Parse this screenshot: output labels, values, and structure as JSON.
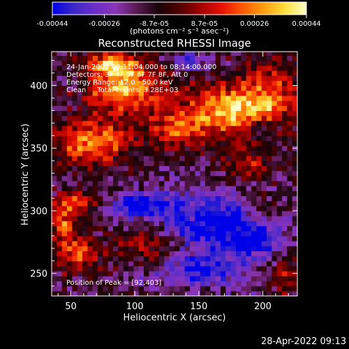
{
  "chart_data": {
    "type": "heatmap",
    "title": "Reconstructed RHESSI Image",
    "xlabel": "Heliocentric X (arcsec)",
    "ylabel": "Heliocentric Y (arcsec)",
    "xlim": [
      35,
      227
    ],
    "ylim": [
      232,
      427
    ],
    "x_ticks": [
      50,
      100,
      150,
      200
    ],
    "y_ticks": [
      250,
      300,
      350,
      400
    ],
    "colorbar": {
      "range": [
        -0.00044,
        0.00044
      ],
      "tick_values": [
        -0.00044,
        -0.00026,
        -8.7e-05,
        8.7e-05,
        0.00026,
        0.00044
      ],
      "tick_labels": [
        "-0.00044",
        "-0.00026",
        "-8.7e-05",
        "8.7e-05",
        "0.00026",
        "0.00044"
      ],
      "unit_label": "(photons cm⁻² s⁻¹ asec⁻²)"
    },
    "colormap": [
      "#0000e8",
      "#3c28c8",
      "#6a2ec8",
      "#8a35b8",
      "#5a1a50",
      "#180408",
      "#500000",
      "#a30000",
      "#e61000",
      "#ff5a00",
      "#ffa010",
      "#ffdf40",
      "#ffffc8"
    ],
    "annotations": [
      "24-Jan-2003 08:11:04.000 to 08:14:00.000",
      "Detectors: 3F 4F 5F 6F 7F 8F, Att 0",
      "Energy Range: 12.0 - 50.0 keV",
      "Clean     Total counts: 3.28E+03",
      "Position of Peak = [92,403]"
    ],
    "peak": [
      92,
      403
    ],
    "grid": false,
    "legend": "colorbar-top",
    "timestamp": "28-Apr-2022 09:13",
    "hot_regions": [
      {
        "x": 92,
        "y": 400,
        "rx": 28,
        "ry": 22,
        "amp": 1.25
      },
      {
        "x": 65,
        "y": 355,
        "rx": 32,
        "ry": 18,
        "amp": 1.0
      },
      {
        "x": 170,
        "y": 380,
        "rx": 34,
        "ry": 20,
        "amp": 1.2
      },
      {
        "x": 130,
        "y": 365,
        "rx": 22,
        "ry": 14,
        "amp": 0.7
      },
      {
        "x": 205,
        "y": 392,
        "rx": 22,
        "ry": 28,
        "amp": 0.8
      },
      {
        "x": 58,
        "y": 308,
        "rx": 18,
        "ry": 9,
        "amp": 0.7
      },
      {
        "x": 45,
        "y": 290,
        "rx": 12,
        "ry": 18,
        "amp": 0.8
      },
      {
        "x": 55,
        "y": 265,
        "rx": 20,
        "ry": 14,
        "amp": 0.75
      },
      {
        "x": 110,
        "y": 272,
        "rx": 24,
        "ry": 16,
        "amp": 0.55
      },
      {
        "x": 188,
        "y": 338,
        "rx": 18,
        "ry": 14,
        "amp": 0.55
      },
      {
        "x": 200,
        "y": 302,
        "rx": 14,
        "ry": 12,
        "amp": 0.45
      },
      {
        "x": 218,
        "y": 250,
        "rx": 12,
        "ry": 16,
        "amp": 0.55
      },
      {
        "x": 82,
        "y": 418,
        "rx": 20,
        "ry": 8,
        "amp": 0.8
      }
    ],
    "cold_regions": [
      {
        "x": 165,
        "y": 290,
        "rx": 40,
        "ry": 24,
        "amp": 1.0
      },
      {
        "x": 105,
        "y": 305,
        "rx": 26,
        "ry": 10,
        "amp": 0.9
      },
      {
        "x": 150,
        "y": 252,
        "rx": 35,
        "ry": 12,
        "amp": 0.8
      },
      {
        "x": 195,
        "y": 275,
        "rx": 20,
        "ry": 12,
        "amp": 0.7
      },
      {
        "x": 145,
        "y": 420,
        "rx": 14,
        "ry": 7,
        "amp": 0.6
      },
      {
        "x": 200,
        "y": 365,
        "rx": 12,
        "ry": 8,
        "amp": 0.6
      }
    ]
  }
}
